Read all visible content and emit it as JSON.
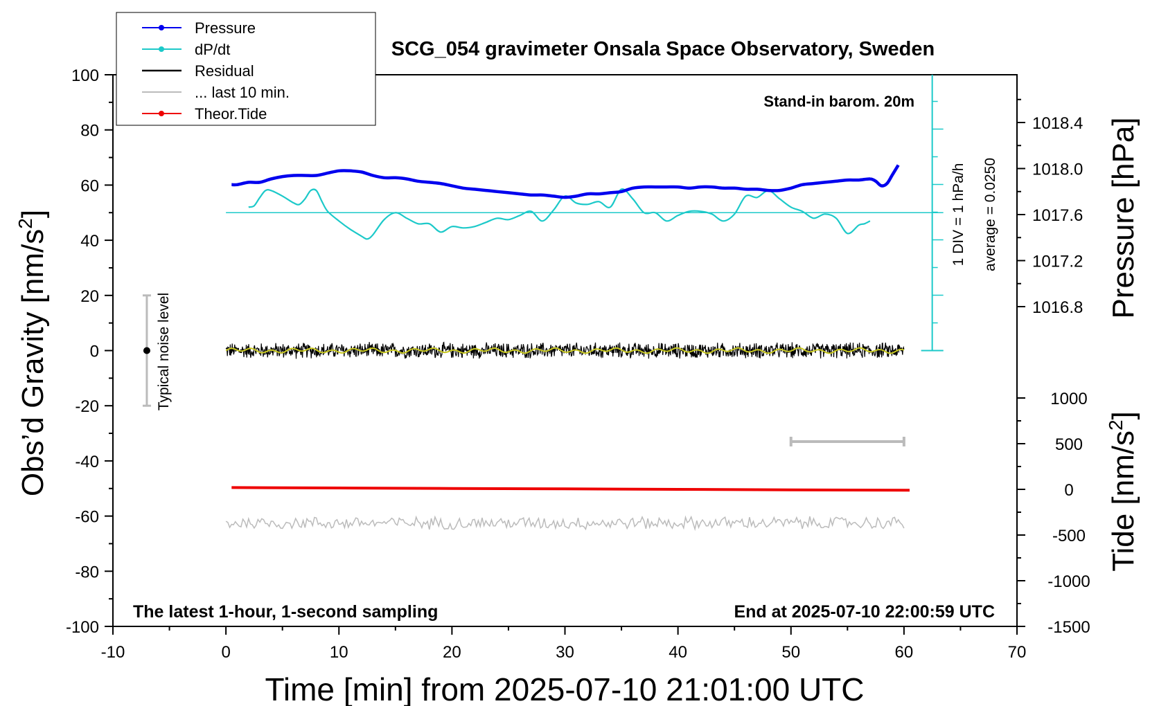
{
  "chart_data": {
    "type": "line",
    "title": "SCG_054 gravimeter Onsala Space Observatory, Sweden",
    "xlabel": "Time [min] from 2025-07-10 21:01:00 UTC",
    "ylabel_left": "Obs’d Gravity [nm/s",
    "ylabel_left_sup": "2",
    "ylabel_left_end": "]",
    "ylabel_right_pressure": "Pressure [hPa]",
    "ylabel_right_tide": "Tide [nm/s",
    "ylabel_right_tide_sup": "2",
    "ylabel_right_tide_end": "]",
    "xlim": [
      -10,
      70
    ],
    "ylim": [
      -100,
      100
    ],
    "pressure_lim": [
      1016.4,
      1018.8
    ],
    "tide_lim": [
      -1500,
      1500
    ],
    "x_ticks": [
      "-10",
      "0",
      "10",
      "20",
      "30",
      "40",
      "50",
      "60",
      "70"
    ],
    "y_ticks": [
      "100",
      "80",
      "60",
      "40",
      "20",
      "0",
      "-20",
      "-40",
      "-60",
      "-80",
      "-100"
    ],
    "pressure_ticks": [
      "1018.4",
      "1018.0",
      "1017.6",
      "1017.2",
      "1016.8"
    ],
    "tide_ticks": [
      "1000",
      "500",
      "0",
      "-500",
      "-1000",
      "-1500"
    ],
    "annotations": {
      "barometer": "Stand-in barom. 20m",
      "sampling": "The latest 1-hour, 1-second sampling",
      "end_time": "End at 2025-07-10 22:00:59 UTC",
      "noise": "Typical noise level",
      "div": "1 DIV = 1 hPa/h",
      "average": "average = 0.0250"
    },
    "legend": [
      {
        "name": "Pressure",
        "color": "#0000ee",
        "marker": true
      },
      {
        "name": "dP/dt",
        "color": "#1cc9c9",
        "marker": true
      },
      {
        "name": "Residual",
        "color": "#000000",
        "marker": false
      },
      {
        "name": "... last 10 min.",
        "color": "#bbbbbb",
        "marker": false
      },
      {
        "name": "Theor.Tide",
        "color": "#ee0000",
        "marker": true
      }
    ],
    "colors": {
      "pressure": "#0000ee",
      "dpdt": "#1cc9c9",
      "residual": "#000000",
      "residual_smooth": "#c8c820",
      "last10": "#bbbbbb",
      "tide": "#ee0000"
    },
    "series": [
      {
        "name": "Pressure",
        "unit": "hPa",
        "x": [
          0.5,
          1,
          2,
          3,
          4,
          5,
          6,
          7,
          8,
          9,
          10,
          11,
          12,
          13,
          14,
          15,
          16,
          17,
          18,
          19,
          20,
          21,
          22,
          23,
          24,
          25,
          26,
          27,
          28,
          29,
          30,
          31,
          32,
          33,
          34,
          35,
          36,
          37,
          38,
          39,
          40,
          41,
          42,
          43,
          44,
          45,
          46,
          47,
          48,
          49,
          50,
          51,
          52,
          53,
          54,
          55,
          56,
          57,
          57.5,
          58,
          58.5,
          59,
          59.5
        ],
        "values": [
          1017.86,
          1017.86,
          1017.88,
          1017.88,
          1017.91,
          1017.93,
          1017.94,
          1017.94,
          1017.94,
          1017.96,
          1017.98,
          1017.98,
          1017.97,
          1017.94,
          1017.92,
          1017.92,
          1017.91,
          1017.89,
          1017.88,
          1017.87,
          1017.85,
          1017.83,
          1017.82,
          1017.81,
          1017.8,
          1017.79,
          1017.78,
          1017.77,
          1017.77,
          1017.76,
          1017.75,
          1017.76,
          1017.78,
          1017.78,
          1017.79,
          1017.8,
          1017.83,
          1017.84,
          1017.84,
          1017.84,
          1017.84,
          1017.83,
          1017.84,
          1017.84,
          1017.83,
          1017.83,
          1017.82,
          1017.82,
          1017.81,
          1017.81,
          1017.83,
          1017.86,
          1017.87,
          1017.88,
          1017.89,
          1017.9,
          1017.9,
          1017.91,
          1017.89,
          1017.85,
          1017.87,
          1017.95,
          1018.03
        ]
      },
      {
        "name": "dP/dt",
        "unit": "hPa/h (1 DIV = 1 hPa/h, average = 0.0250)",
        "x": [
          2,
          2.5,
          3,
          3.5,
          4,
          5,
          6,
          6.5,
          7,
          7.5,
          8,
          8.5,
          9,
          10,
          11,
          12,
          12.5,
          13,
          14,
          15,
          16,
          17,
          18,
          19,
          20,
          21,
          22,
          23,
          24,
          25,
          26,
          27,
          28,
          29,
          30,
          31,
          32,
          33,
          34,
          35,
          36,
          37,
          38,
          39,
          40,
          41,
          42,
          43,
          44,
          45,
          46,
          47,
          48,
          49,
          50,
          51,
          52,
          53,
          54,
          55,
          56,
          56.5,
          57
        ],
        "values": [
          0.2,
          0.25,
          0.55,
          0.8,
          0.8,
          0.6,
          0.35,
          0.3,
          0.5,
          0.8,
          0.8,
          0.4,
          0.05,
          -0.3,
          -0.6,
          -0.85,
          -0.95,
          -0.8,
          -0.25,
          0.0,
          -0.2,
          -0.4,
          -0.4,
          -0.7,
          -0.5,
          -0.55,
          -0.5,
          -0.35,
          -0.2,
          -0.25,
          -0.1,
          0.05,
          -0.3,
          0.1,
          0.6,
          0.35,
          0.3,
          0.4,
          0.2,
          0.85,
          0.5,
          0.0,
          0.0,
          -0.3,
          -0.1,
          0.05,
          0.05,
          -0.05,
          -0.3,
          -0.05,
          0.6,
          0.55,
          0.8,
          0.5,
          0.2,
          0.05,
          -0.2,
          -0.05,
          -0.2,
          -0.75,
          -0.45,
          -0.4,
          -0.3
        ]
      },
      {
        "name": "Residual",
        "unit": "nm/s2",
        "x_range": [
          0,
          60
        ],
        "mean": 0.0,
        "typical_amplitude": 2.5
      },
      {
        "name": "... last 10 min.",
        "unit": "nm/s2 (offset)",
        "x_range": [
          0,
          60
        ],
        "mean": -62.5,
        "typical_amplitude": 2.0,
        "bracket_x_range": [
          50,
          60
        ]
      },
      {
        "name": "Theor.Tide",
        "unit": "nm/s2",
        "x": [
          0.5,
          10,
          20,
          30,
          40,
          50,
          60.5
        ],
        "values": [
          20,
          15,
          10,
          5,
          0,
          -5,
          -10
        ]
      }
    ],
    "noise_bar": {
      "x": -7,
      "y_min": -20,
      "y_max": 20,
      "center": 0
    }
  }
}
